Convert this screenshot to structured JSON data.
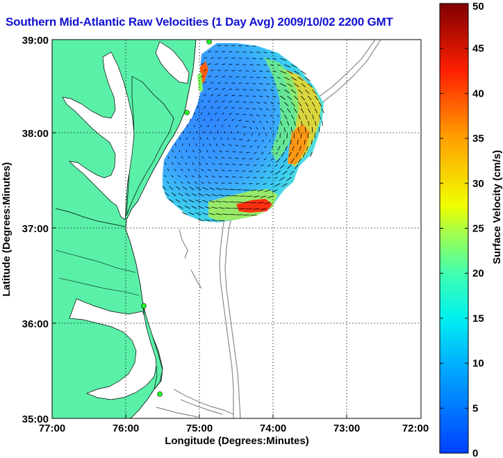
{
  "title": "Southern Mid-Atlantic Raw Velocities (1 Day Avg) 2009/10/02 2200 GMT",
  "map": {
    "xlabel": "Longitude (Degrees:Minutes)",
    "ylabel": "Latitude (Degrees:Minutes)",
    "x_ticks": [
      "77:00",
      "76:00",
      "75:00",
      "74:00",
      "73:00",
      "72:00"
    ],
    "y_ticks": [
      "39:00",
      "38:00",
      "37:00",
      "36:00",
      "35:00"
    ],
    "x_range": [
      -77,
      -72
    ],
    "y_range": [
      35,
      39
    ],
    "grid": "dotted",
    "land_color": "#5af0a8",
    "contour_color": "#8a8a8a"
  },
  "colorbar": {
    "label": "Surface Velocity (cm/s)",
    "ticks": [
      "0",
      "5",
      "10",
      "15",
      "20",
      "25",
      "30",
      "35",
      "40",
      "45",
      "50"
    ],
    "min": 0,
    "max": 50
  }
}
